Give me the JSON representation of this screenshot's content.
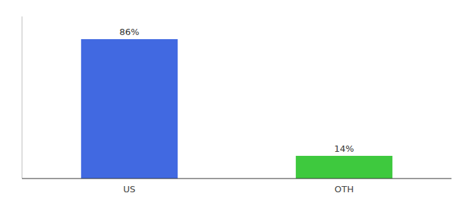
{
  "chart_data": {
    "type": "bar",
    "categories": [
      "US",
      "OTH"
    ],
    "values": [
      86,
      14
    ],
    "value_labels": [
      "86%",
      "14%"
    ],
    "colors": [
      "#4169e1",
      "#3ec93e"
    ],
    "ylim": [
      0,
      100
    ],
    "yticks": [],
    "data_labels": true,
    "tick_labels": "x"
  }
}
